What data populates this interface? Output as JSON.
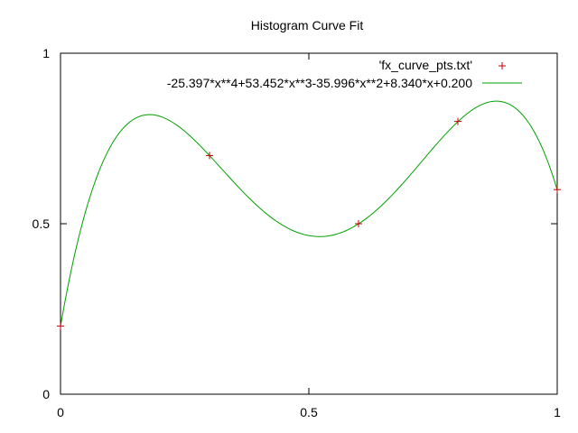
{
  "chart_data": {
    "type": "scatter",
    "title": "Histogram Curve Fit",
    "xlabel": "",
    "ylabel": "",
    "xlim": [
      0,
      1
    ],
    "ylim": [
      0,
      1
    ],
    "grid": false,
    "legend_position": "top-right",
    "x_ticks": [
      {
        "value": 0,
        "label": "0"
      },
      {
        "value": 0.5,
        "label": "0.5"
      },
      {
        "value": 1,
        "label": "1"
      }
    ],
    "y_ticks": [
      {
        "value": 0,
        "label": "0"
      },
      {
        "value": 0.5,
        "label": "0.5"
      },
      {
        "value": 1,
        "label": "1"
      }
    ],
    "series": [
      {
        "name": "'fx_curve_pts.txt'",
        "kind": "points",
        "marker": "+",
        "color": "#c00000",
        "points": [
          {
            "x": 0,
            "y": 0.2
          },
          {
            "x": 0.3,
            "y": 0.7
          },
          {
            "x": 0.6,
            "y": 0.5
          },
          {
            "x": 0.8,
            "y": 0.8
          },
          {
            "x": 1,
            "y": 0.6
          }
        ]
      },
      {
        "name": "-25.397*x**4+53.452*x**3-35.996*x**2+8.340*x+0.200",
        "kind": "line",
        "color": "#00a000",
        "coefficients": [
          -25.397,
          53.452,
          -35.996,
          8.34,
          0.2
        ],
        "domain": [
          0,
          1
        ]
      }
    ]
  }
}
